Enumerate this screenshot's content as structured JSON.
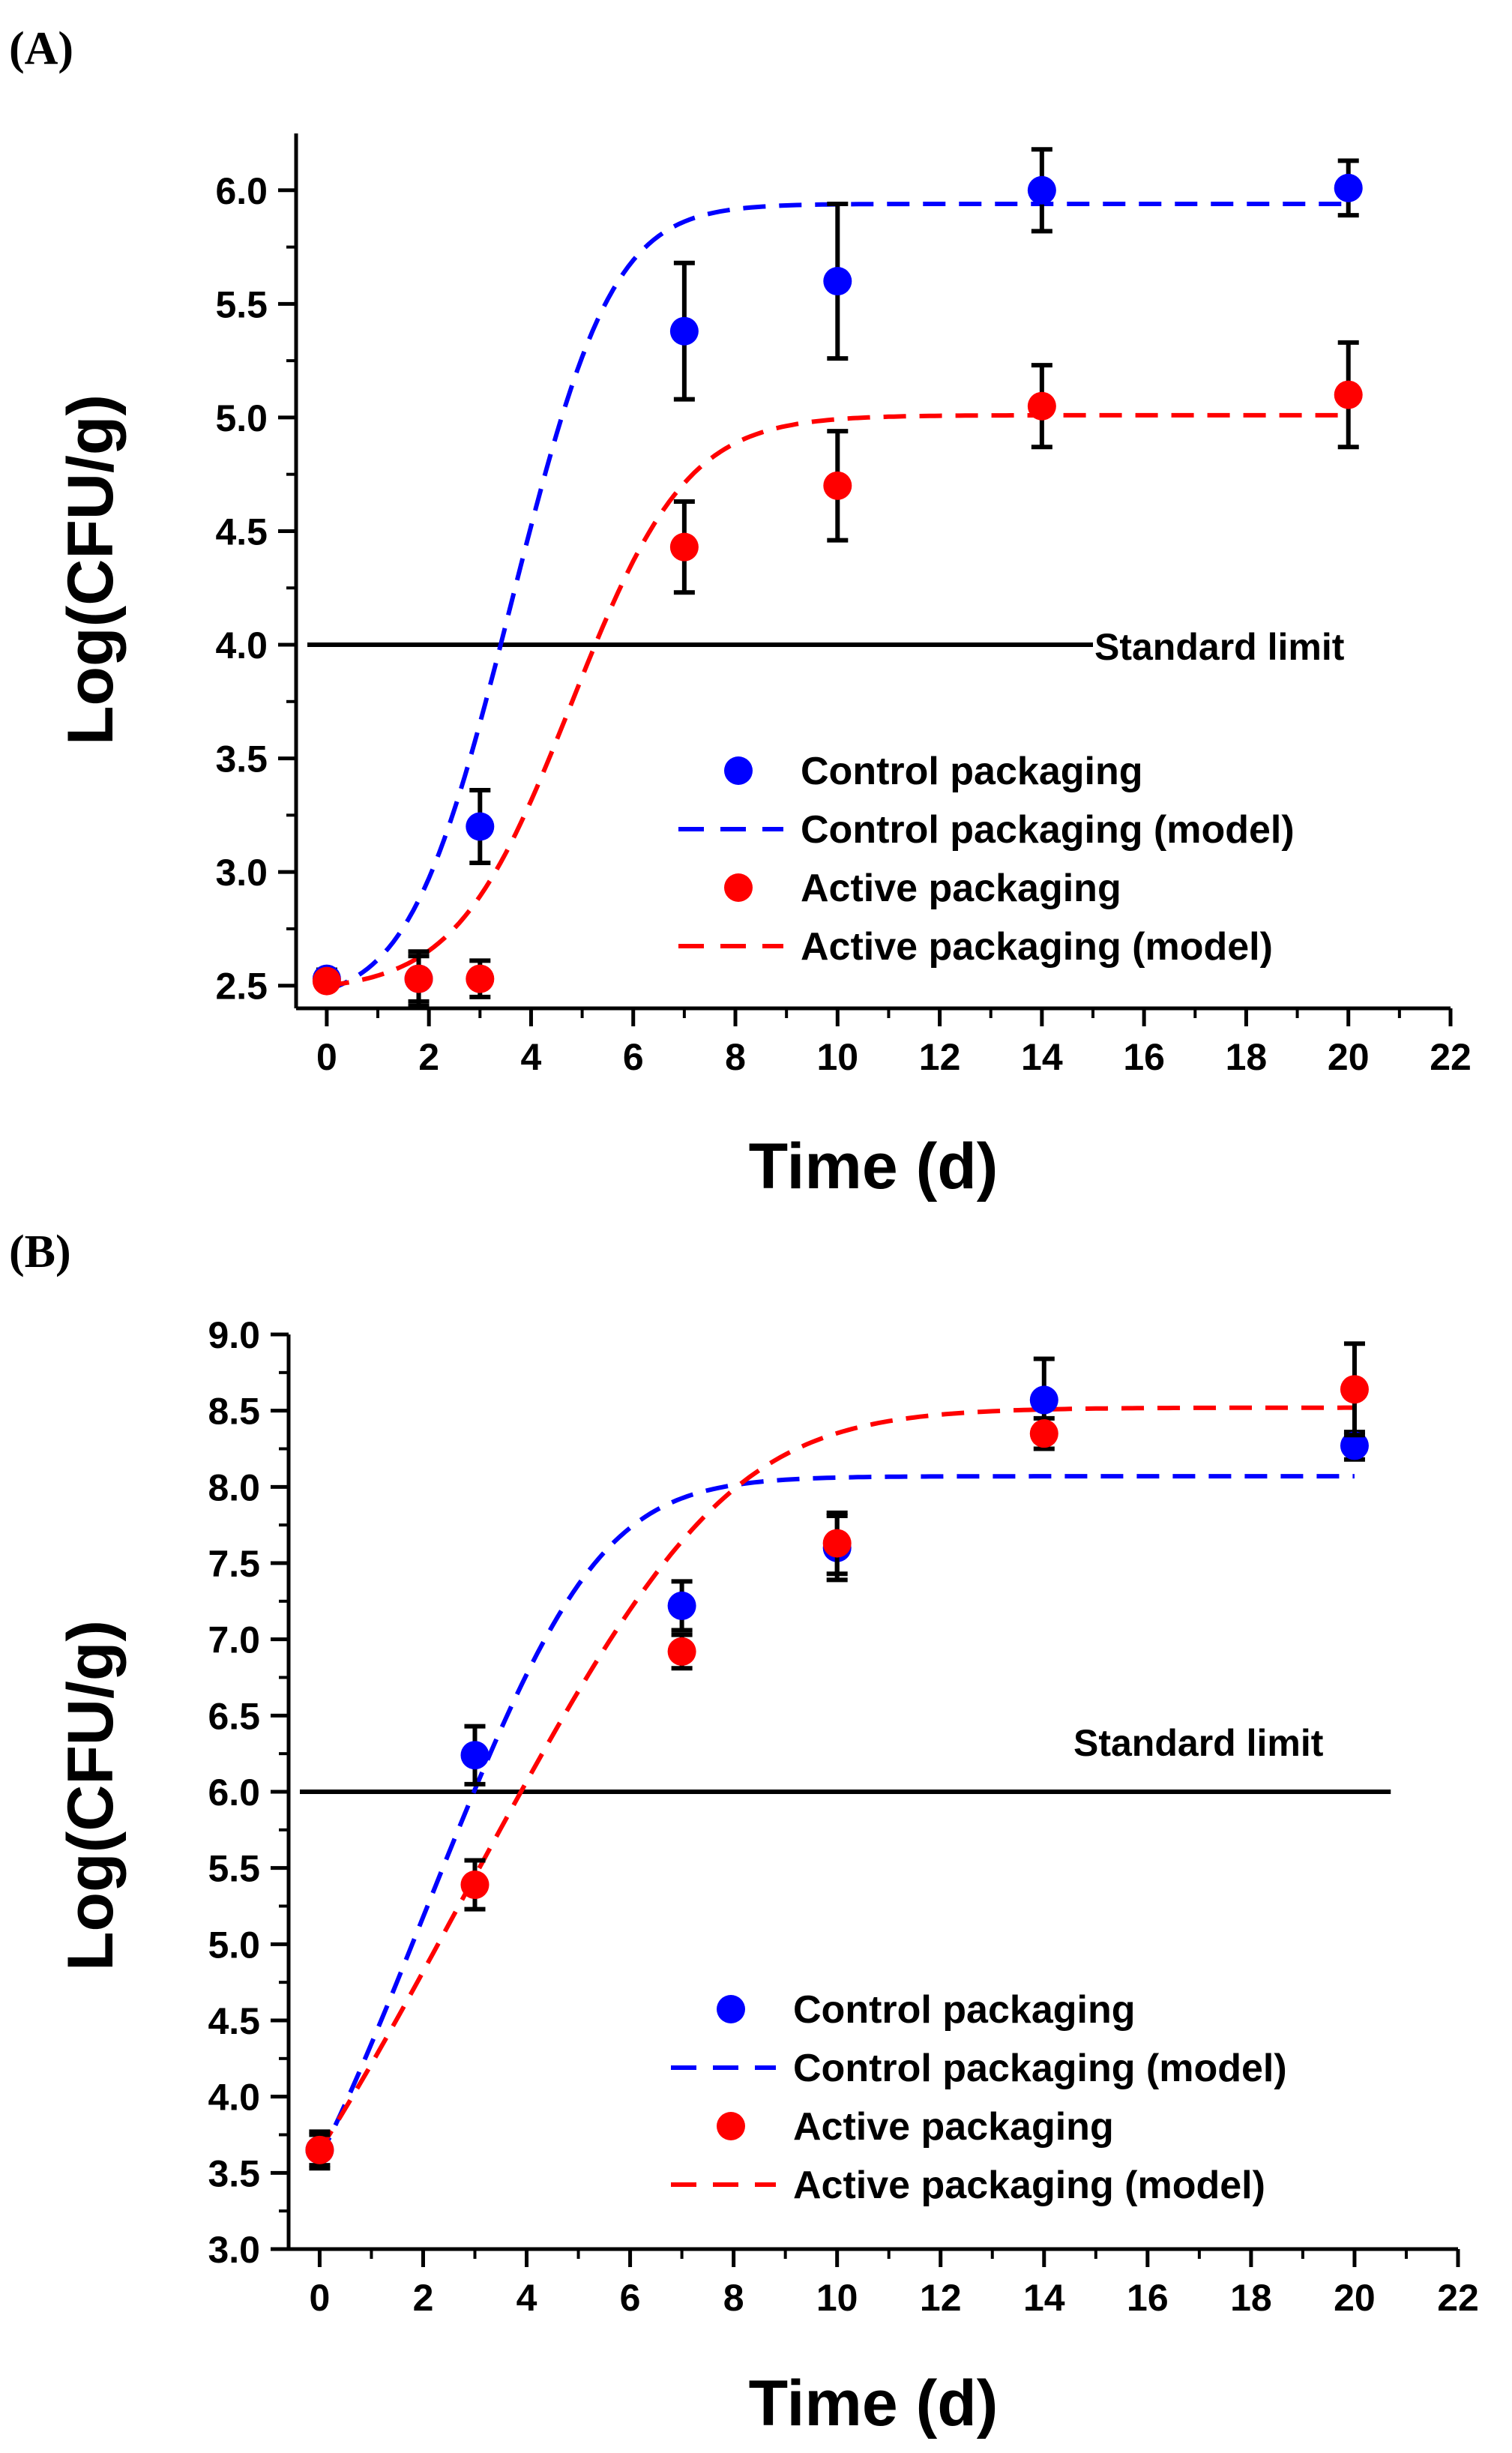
{
  "chart_data": [
    {
      "panel_label": "(A)",
      "type": "scatter",
      "xlabel": "Time (d)",
      "ylabel": "Log(CFU/g)",
      "xlim": [
        -0.6,
        22
      ],
      "ylim": [
        2.4,
        6.25
      ],
      "xticks": [
        0,
        2,
        4,
        6,
        8,
        10,
        12,
        14,
        16,
        18,
        20,
        22
      ],
      "yticks": [
        2.5,
        3.0,
        3.5,
        4.0,
        4.5,
        5.0,
        5.5,
        6.0
      ],
      "standard_limit": {
        "value": 4.0,
        "x_end": 15,
        "label": "Standard limit"
      },
      "series": [
        {
          "name": "Control packaging",
          "kind": "points",
          "color": "#0000ff",
          "x": [
            0,
            1.8,
            3,
            7,
            10,
            14,
            20
          ],
          "y": [
            2.53,
            2.53,
            3.2,
            5.38,
            5.6,
            6.0,
            6.01
          ],
          "err": [
            0.04,
            0.12,
            0.16,
            0.3,
            0.34,
            0.18,
            0.12
          ]
        },
        {
          "name": "Control packaging (model)",
          "kind": "model",
          "color": "#0000ff",
          "model": {
            "y0": 2.48,
            "ymax": 5.94,
            "mu": 1.25,
            "lag": 2.25,
            "x_end": 20
          }
        },
        {
          "name": "Active packaging",
          "kind": "points",
          "color": "#ff0000",
          "x": [
            0,
            1.8,
            3,
            7,
            10,
            14,
            20
          ],
          "y": [
            2.52,
            2.53,
            2.53,
            4.43,
            4.7,
            5.05,
            5.1
          ],
          "err": [
            0.03,
            0.1,
            0.08,
            0.2,
            0.24,
            0.18,
            0.23
          ]
        },
        {
          "name": "Active packaging (model)",
          "kind": "model",
          "color": "#ff0000",
          "model": {
            "y0": 2.5,
            "ymax": 5.01,
            "mu": 1.0,
            "lag": 3.55,
            "x_end": 20
          }
        }
      ]
    },
    {
      "panel_label": "(B)",
      "type": "scatter",
      "xlabel": "Time (d)",
      "ylabel": "Log(CFU/g)",
      "xlim": [
        -0.6,
        22
      ],
      "ylim": [
        3.0,
        9.0
      ],
      "xticks": [
        0,
        2,
        4,
        6,
        8,
        10,
        12,
        14,
        16,
        18,
        20,
        22
      ],
      "yticks": [
        3.0,
        3.5,
        4.0,
        4.5,
        5.0,
        5.5,
        6.0,
        6.5,
        7.0,
        7.5,
        8.0,
        8.5,
        9.0
      ],
      "standard_limit": {
        "value": 6.0,
        "x_end": 20.7,
        "label": "Standard limit"
      },
      "series": [
        {
          "name": "Control packaging",
          "kind": "points",
          "color": "#0000ff",
          "x": [
            0,
            3,
            7,
            10,
            14,
            20
          ],
          "y": [
            3.65,
            6.24,
            7.22,
            7.6,
            8.57,
            8.27
          ],
          "err": [
            0.12,
            0.19,
            0.16,
            0.21,
            0.27,
            0.09
          ]
        },
        {
          "name": "Control packaging (model)",
          "kind": "model",
          "color": "#0000ff",
          "model": {
            "y0": 3.6,
            "ymax": 8.07,
            "mu": 0.95,
            "lag": 0.35,
            "x_end": 20
          }
        },
        {
          "name": "Active packaging",
          "kind": "points",
          "color": "#ff0000",
          "x": [
            0,
            3,
            7,
            10,
            14,
            20
          ],
          "y": [
            3.65,
            5.39,
            6.92,
            7.63,
            8.35,
            8.64
          ],
          "err": [
            0.1,
            0.16,
            0.11,
            0.2,
            0.1,
            0.3
          ]
        },
        {
          "name": "Active packaging (model)",
          "kind": "model",
          "color": "#ff0000",
          "model": {
            "y0": 3.65,
            "ymax": 8.52,
            "mu": 0.68,
            "lag": 0.35,
            "x_end": 20
          }
        }
      ]
    }
  ]
}
